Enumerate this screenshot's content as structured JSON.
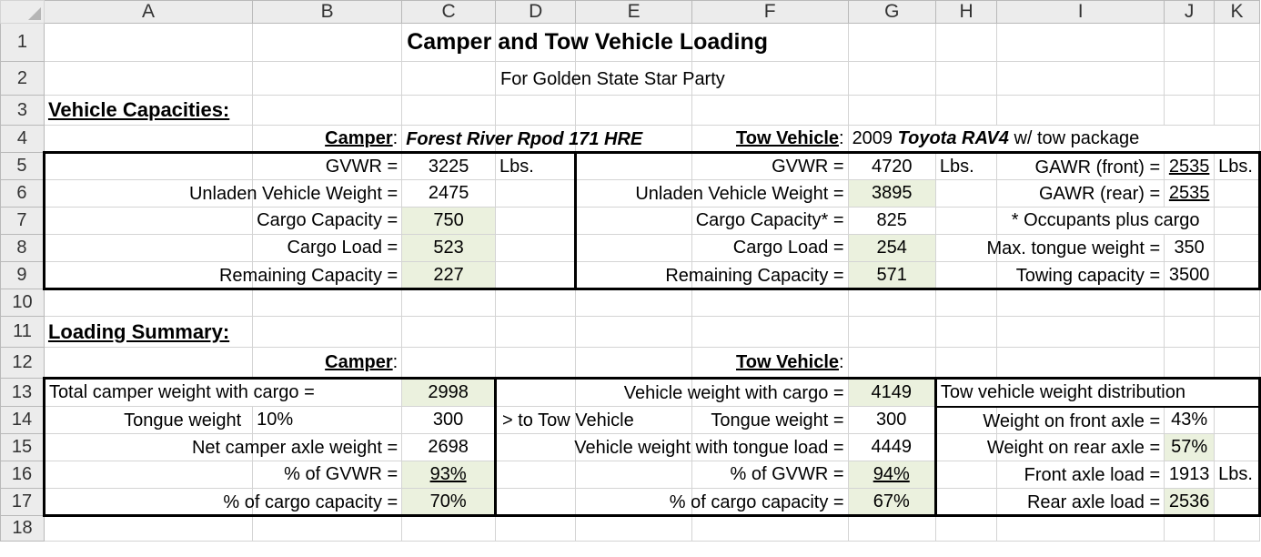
{
  "columns": [
    "A",
    "B",
    "C",
    "D",
    "E",
    "F",
    "G",
    "H",
    "I",
    "J",
    "K"
  ],
  "rows": [
    "1",
    "2",
    "3",
    "4",
    "5",
    "6",
    "7",
    "8",
    "9",
    "10",
    "11",
    "12",
    "13",
    "14",
    "15",
    "16",
    "17",
    "18"
  ],
  "header": {
    "title": "Camper and Tow Vehicle Loading",
    "subtitle": "For Golden State Star Party"
  },
  "capacities": {
    "heading": "Vehicle Capacities:",
    "camper_label": "Camper",
    "camper_name": "Forest River Rpod 171 HRE",
    "tow_label": "Tow Vehicle",
    "tow_year": "2009",
    "tow_model": "Toyota RAV4",
    "tow_suffix": "w/ tow package",
    "camper": {
      "gvwr_label": "GVWR =",
      "gvwr": "3225",
      "unit": "Lbs.",
      "unladen_label": "Unladen Vehicle Weight =",
      "unladen": "2475",
      "cargo_cap_label": "Cargo Capacity =",
      "cargo_cap": "750",
      "cargo_load_label": "Cargo Load =",
      "cargo_load": "523",
      "remaining_label": "Remaining Capacity =",
      "remaining": "227"
    },
    "tow": {
      "gvwr_label": "GVWR =",
      "gvwr": "4720",
      "unit": "Lbs.",
      "unladen_label": "Unladen Vehicle Weight =",
      "unladen": "3895",
      "cargo_cap_label": "Cargo Capacity* =",
      "cargo_cap": "825",
      "cargo_load_label": "Cargo Load =",
      "cargo_load": "254",
      "remaining_label": "Remaining Capacity =",
      "remaining": "571",
      "gawr_front_label": "GAWR (front) =",
      "gawr_front": "2535",
      "gawr_unit": "Lbs.",
      "gawr_rear_label": "GAWR (rear) =",
      "gawr_rear": "2535",
      "occupants_note": "* Occupants plus cargo",
      "tongue_max_label": "Max. tongue weight =",
      "tongue_max": "350",
      "towing_cap_label": "Towing capacity =",
      "towing_cap": "3500"
    }
  },
  "summary": {
    "heading": "Loading Summary:",
    "camper_label": "Camper",
    "tow_label": "Tow Vehicle",
    "camper": {
      "total_label": "Total camper weight with cargo =",
      "total": "2998",
      "tongue_label": "Tongue weight",
      "tongue_pct": "10%",
      "tongue": "300",
      "net_axle_label": "Net camper axle weight =",
      "net_axle": "2698",
      "pct_gvwr_label": "% of GVWR =",
      "pct_gvwr": "93%",
      "pct_cargo_label": "% of cargo capacity =",
      "pct_cargo": "70%"
    },
    "tow": {
      "with_cargo_label": "Vehicle weight with cargo =",
      "with_cargo": "4149",
      "to_tow_label": "> to Tow Vehicle",
      "tongue_label": "Tongue weight =",
      "tongue": "300",
      "with_tongue_label": "Vehicle weight with tongue load =",
      "with_tongue": "4449",
      "pct_gvwr_label": "% of GVWR =",
      "pct_gvwr": "94%",
      "pct_cargo_label": "% of cargo capacity =",
      "pct_cargo": "67%"
    },
    "distribution": {
      "heading": "Tow vehicle weight distribution",
      "front_label": "Weight on front axle =",
      "front_pct": "43%",
      "rear_label": "Weight on rear axle =",
      "rear_pct": "57%",
      "front_load_label": "Front axle load =",
      "front_load": "1913",
      "unit": "Lbs.",
      "rear_load_label": "Rear axle load =",
      "rear_load": "2536"
    }
  }
}
